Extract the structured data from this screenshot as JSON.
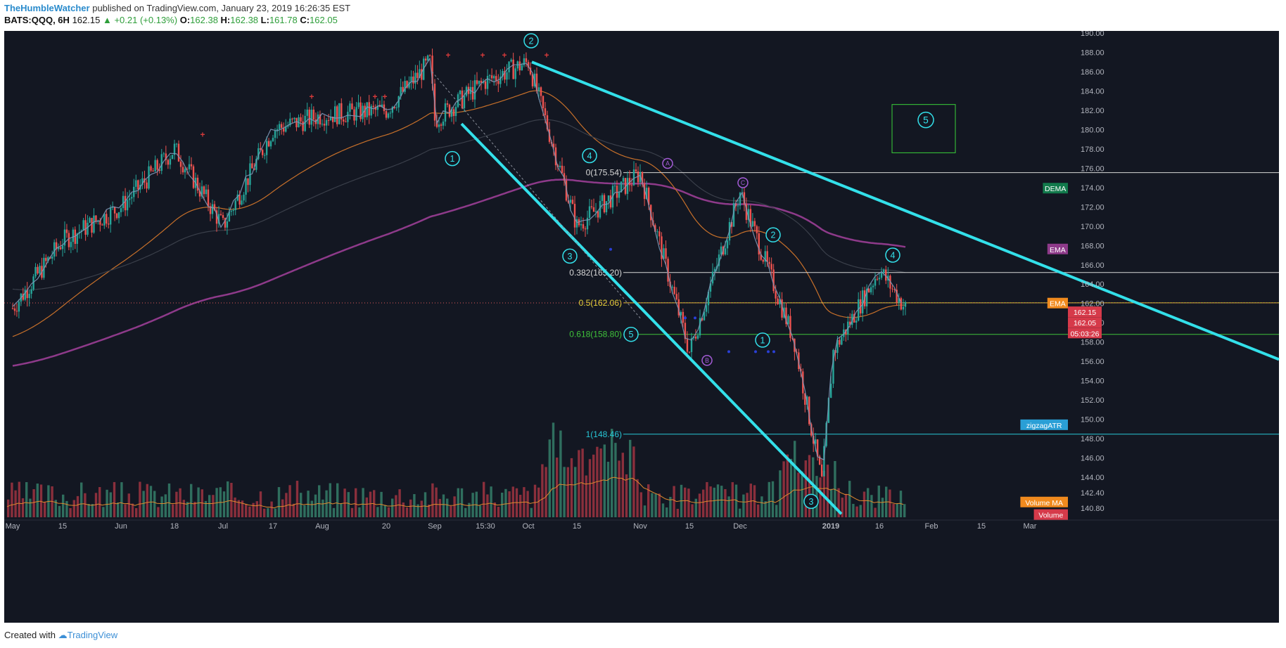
{
  "header": {
    "author": "TheHumbleWatcher",
    "published": "published on TradingView.com, January 23, 2019 16:26:35 EST",
    "symbol": "BATS:QQQ, 6H",
    "last": "162.15",
    "change": "+0.21 (+0.13%)",
    "o_label": "O:",
    "o": "162.38",
    "h_label": "H:",
    "h": "162.38",
    "l_label": "L:",
    "l": "161.78",
    "c_label": "C:",
    "c": "162.05"
  },
  "footer": {
    "created_with": "Created with",
    "brand": "TradingView"
  },
  "colors": {
    "background": "#131722",
    "up": "#26a69a",
    "down": "#ef5350",
    "channel": "#33e0ea",
    "ema_purple": "#8e3a8a",
    "ema_orange": "#c7702a",
    "fib_white": "#d8d8d8",
    "fib_yellow": "#e8d23a",
    "fib_green": "#3fc23a",
    "fib_cyan": "#27c7d6",
    "zigzag": "#7e98b8",
    "box": "#3ad13a"
  },
  "chart_data": {
    "type": "candlestick",
    "y_axis_ticks": [
      "190.00",
      "188.00",
      "186.00",
      "184.00",
      "182.00",
      "180.00",
      "178.00",
      "176.00",
      "174.00",
      "172.00",
      "170.00",
      "168.00",
      "166.00",
      "164.00",
      "162.00",
      "160.00",
      "158.00",
      "156.00",
      "154.00",
      "152.00",
      "150.00",
      "148.00",
      "146.00",
      "144.00",
      "142.40",
      "140.80"
    ],
    "x_axis_ticks": [
      "May",
      "15",
      "Jun",
      "18",
      "Jul",
      "17",
      "Aug",
      "20",
      "Sep",
      "15:30",
      "Oct",
      "15",
      "Nov",
      "15",
      "Dec",
      "2019",
      "16",
      "Feb",
      "15",
      "Mar"
    ],
    "price_path_approx": [
      [
        "May",
        161.5
      ],
      [
        "15",
        168.5
      ],
      [
        "Jun",
        172.0
      ],
      [
        "18",
        178.0
      ],
      [
        "Jul",
        170.0
      ],
      [
        "17",
        180.0
      ],
      [
        "Aug",
        181.5
      ],
      [
        "20",
        182.0
      ],
      [
        "late Aug",
        187.0
      ],
      [
        "Sep",
        181.0
      ],
      [
        "15:30",
        185.0
      ],
      [
        "Oct",
        187.0
      ],
      [
        "15",
        170.0
      ],
      [
        "Nov",
        175.5
      ],
      [
        "15",
        157.0
      ],
      [
        "Dec",
        173.5
      ],
      [
        "mid Dec",
        158.0
      ],
      [
        "late Dec",
        143.5
      ],
      [
        "2019",
        157.0
      ],
      [
        "16",
        165.5
      ],
      [
        "end",
        161.5
      ]
    ],
    "fib_levels": [
      {
        "label": "0(175.54)",
        "value": 175.54
      },
      {
        "label": "0.382(165.20)",
        "value": 165.2
      },
      {
        "label": "0.5(162.06)",
        "value": 162.06
      },
      {
        "label": "0.618(158.80)",
        "value": 158.8
      },
      {
        "label": "1(148.46)",
        "value": 148.46
      }
    ],
    "wave_labels": [
      "1",
      "2",
      "3",
      "4",
      "5",
      "A",
      "B",
      "C",
      "1",
      "2",
      "3",
      "4",
      "5"
    ],
    "indicator_tags": [
      "DEMA",
      "EMA",
      "EMA",
      "zigzagATR",
      "Volume MA",
      "Volume"
    ],
    "price_tags": [
      "162.15",
      "162.05",
      "05:03:26"
    ],
    "ema_long_endpoint": 167.6,
    "ema_mid_endpoint": 162.0,
    "dema_endpoint": 173.9,
    "current_price": 162.05
  }
}
